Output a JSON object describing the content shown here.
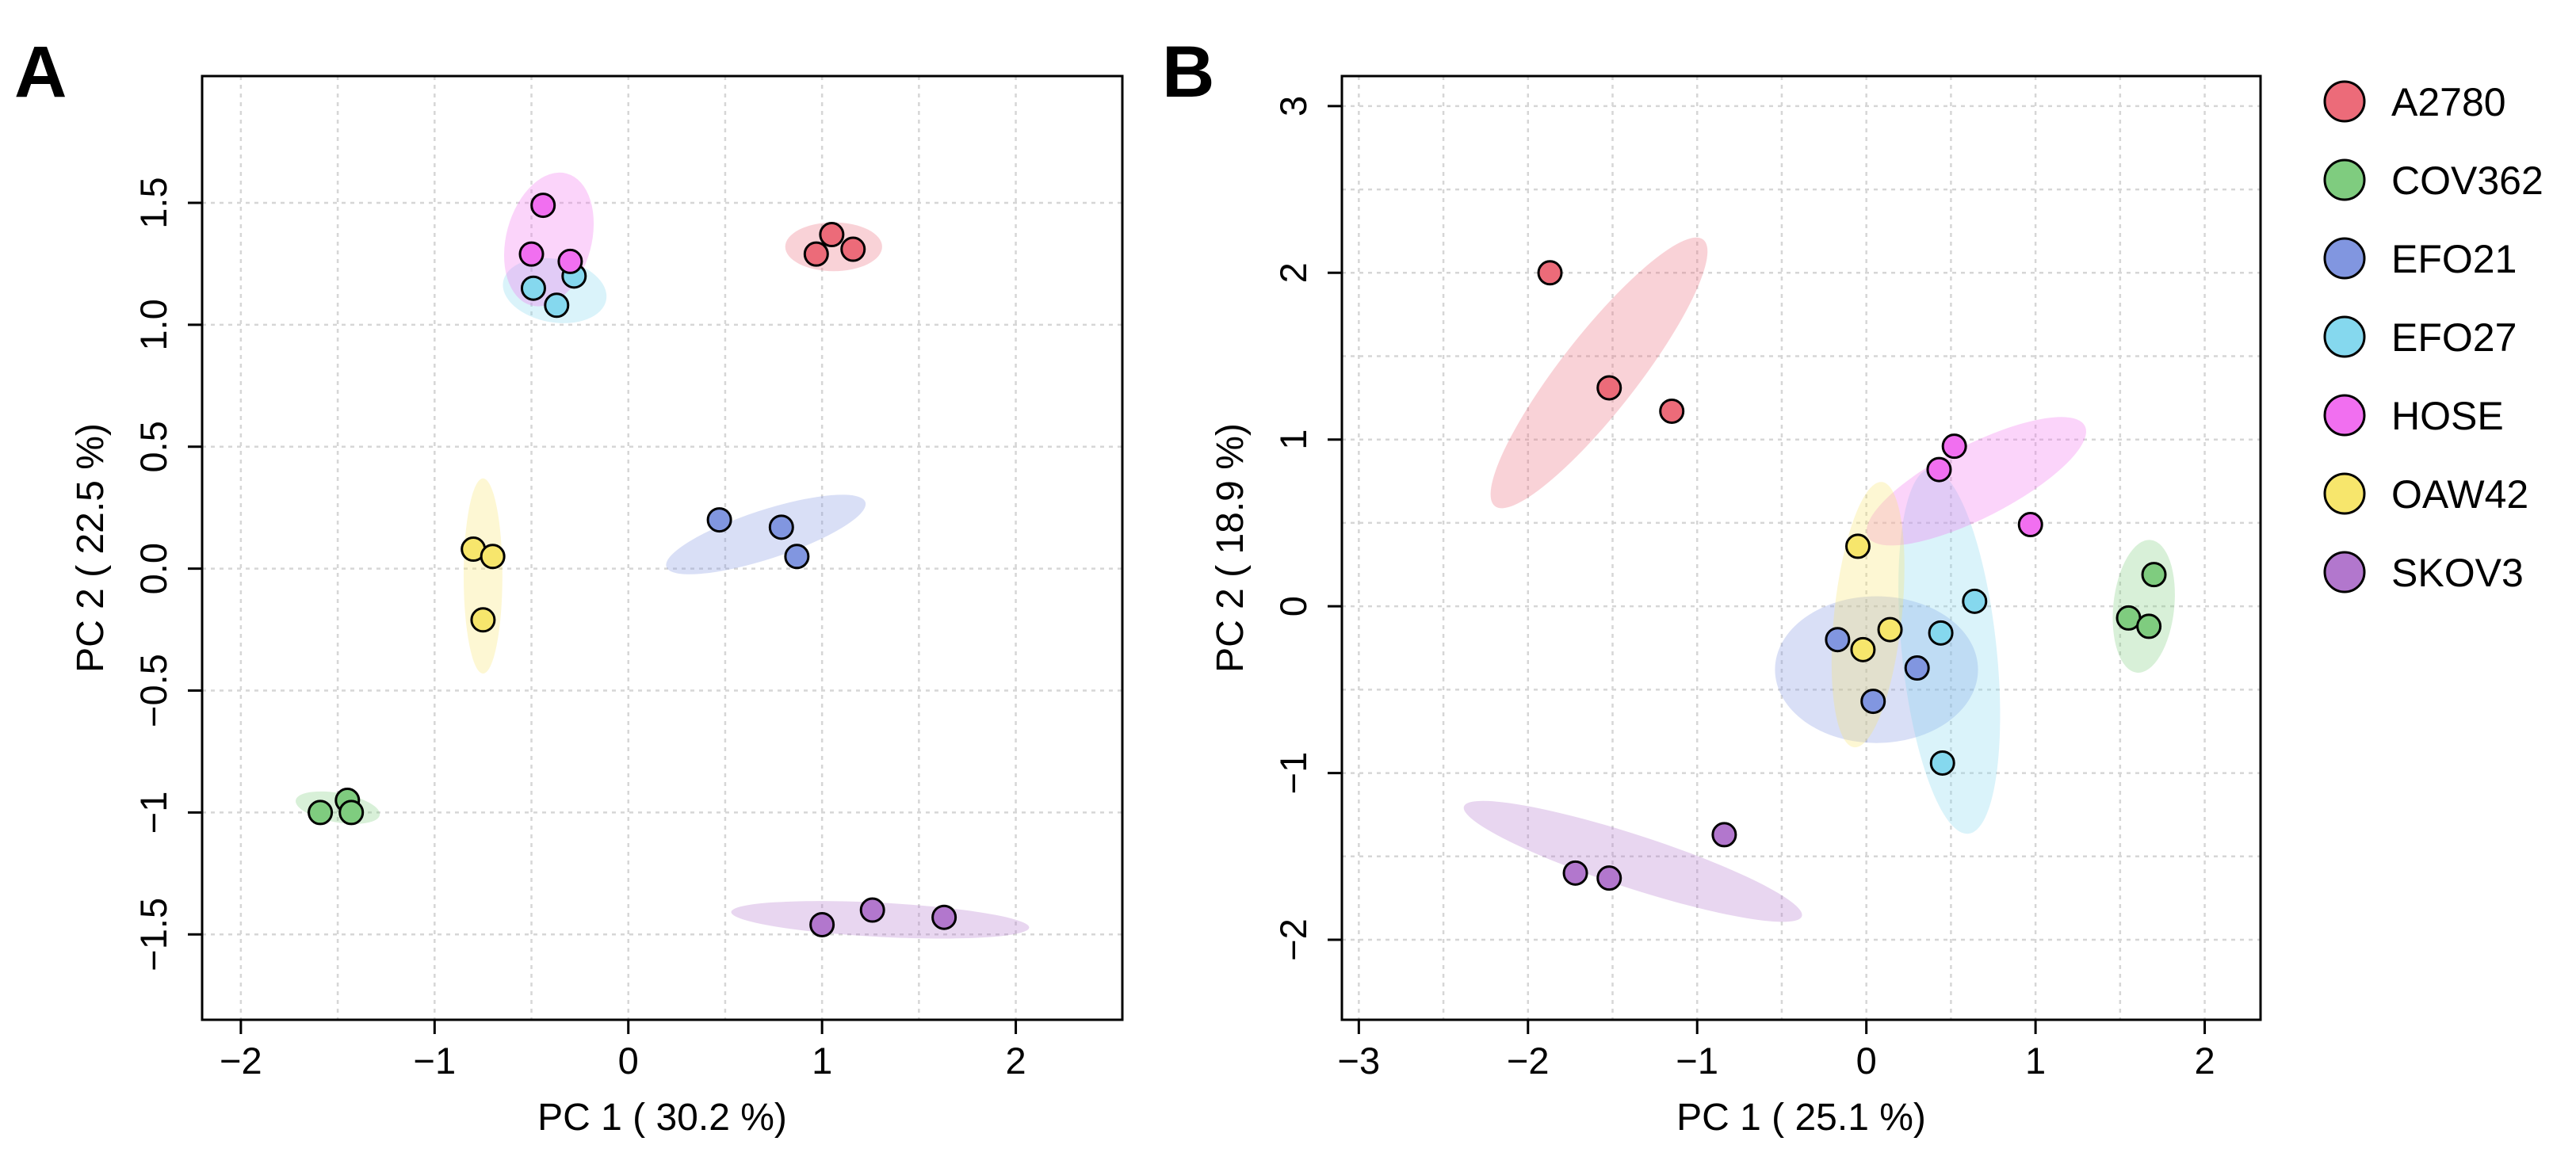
{
  "groups": [
    {
      "name": "A2780",
      "color": "#ec6b79"
    },
    {
      "name": "COV362",
      "color": "#7fcc7f"
    },
    {
      "name": "EFO21",
      "color": "#8196e0"
    },
    {
      "name": "EFO27",
      "color": "#85d8ee"
    },
    {
      "name": "HOSE",
      "color": "#f16ff0"
    },
    {
      "name": "OAW42",
      "color": "#f7e66c"
    },
    {
      "name": "SKOV3",
      "color": "#b277cd"
    }
  ],
  "chart_data": [
    {
      "type": "scatter",
      "panel": "A",
      "xlabel": "PC 1 ( 30.2 %)",
      "ylabel": "PC 2 ( 22.5 %)",
      "xlim": [
        -2.2,
        2.55
      ],
      "ylim": [
        -1.85,
        2.02
      ],
      "xticks": [
        -2,
        -1,
        0,
        1,
        2
      ],
      "xtick_labels": [
        "−2",
        "−1",
        "0",
        "1",
        "2"
      ],
      "yticks": [
        -1.5,
        -1,
        -0.5,
        0,
        0.5,
        1,
        1.5
      ],
      "ytick_labels": [
        "−1.5",
        "−1",
        "−0.5",
        "0.0",
        "0.5",
        "1.0",
        "1.5"
      ],
      "xgrid": [
        -2,
        -1.5,
        -1,
        -0.5,
        0,
        0.5,
        1,
        1.5,
        2
      ],
      "ygrid": [
        -1.5,
        -1,
        -0.5,
        0,
        0.5,
        1,
        1.5
      ],
      "grid": true,
      "series": [
        {
          "name": "A2780",
          "points": [
            [
              0.97,
              1.29
            ],
            [
              1.05,
              1.37
            ],
            [
              1.16,
              1.31
            ]
          ],
          "ellipse": {
            "cx": 1.06,
            "cy": 1.32,
            "rx": 0.25,
            "ry": 0.1,
            "angle": 0
          }
        },
        {
          "name": "COV362",
          "points": [
            [
              -1.59,
              -1.0
            ],
            [
              -1.45,
              -0.95
            ],
            [
              -1.43,
              -1.0
            ]
          ],
          "ellipse": {
            "cx": -1.5,
            "cy": -0.98,
            "rx": 0.22,
            "ry": 0.06,
            "angle": 10
          }
        },
        {
          "name": "EFO21",
          "points": [
            [
              0.47,
              0.2
            ],
            [
              0.79,
              0.17
            ],
            [
              0.87,
              0.05
            ]
          ],
          "ellipse": {
            "cx": 0.71,
            "cy": 0.14,
            "rx": 0.54,
            "ry": 0.1,
            "angle": -18
          }
        },
        {
          "name": "EFO27",
          "points": [
            [
              -0.49,
              1.15
            ],
            [
              -0.37,
              1.08
            ],
            [
              -0.28,
              1.2
            ]
          ],
          "ellipse": {
            "cx": -0.38,
            "cy": 1.14,
            "rx": 0.27,
            "ry": 0.13,
            "angle": 10
          }
        },
        {
          "name": "HOSE",
          "points": [
            [
              -0.44,
              1.49
            ],
            [
              -0.5,
              1.29
            ],
            [
              -0.3,
              1.26
            ]
          ],
          "ellipse": {
            "cx": -0.41,
            "cy": 1.35,
            "rx": 0.22,
            "ry": 0.28,
            "angle": 15
          }
        },
        {
          "name": "OAW42",
          "points": [
            [
              -0.8,
              0.08
            ],
            [
              -0.7,
              0.05
            ],
            [
              -0.75,
              -0.21
            ]
          ],
          "ellipse": {
            "cx": -0.75,
            "cy": -0.03,
            "rx": 0.1,
            "ry": 0.4,
            "angle": 0
          }
        },
        {
          "name": "SKOV3",
          "points": [
            [
              1.0,
              -1.46
            ],
            [
              1.26,
              -1.4
            ],
            [
              1.63,
              -1.43
            ]
          ],
          "ellipse": {
            "cx": 1.3,
            "cy": -1.44,
            "rx": 0.77,
            "ry": 0.07,
            "angle": 3
          }
        }
      ]
    },
    {
      "type": "scatter",
      "panel": "B",
      "xlabel": "PC 1 ( 25.1 %)",
      "ylabel": "PC 2 ( 18.9 %)",
      "xlim": [
        -3.1,
        2.33
      ],
      "ylim": [
        -2.48,
        3.18
      ],
      "xticks": [
        -3,
        -2,
        -1,
        0,
        1,
        2
      ],
      "xtick_labels": [
        "−3",
        "−2",
        "−1",
        "0",
        "1",
        "2"
      ],
      "yticks": [
        -2,
        -1,
        0,
        1,
        2,
        3
      ],
      "ytick_labels": [
        "−2",
        "−1",
        "0",
        "1",
        "2",
        "3"
      ],
      "xgrid": [
        -3,
        -2.5,
        -2,
        -1.5,
        -1,
        -0.5,
        0,
        0.5,
        1,
        1.5,
        2
      ],
      "ygrid": [
        -2,
        -1.5,
        -1,
        -0.5,
        0,
        0.5,
        1,
        1.5,
        2,
        2.5,
        3
      ],
      "grid": true,
      "series": [
        {
          "name": "A2780",
          "points": [
            [
              -1.87,
              2.0
            ],
            [
              -1.52,
              1.31
            ],
            [
              -1.15,
              1.17
            ]
          ],
          "ellipse": {
            "cx": -1.58,
            "cy": 1.4,
            "rx": 1.0,
            "ry": 0.23,
            "angle": -52
          }
        },
        {
          "name": "COV362",
          "points": [
            [
              1.55,
              -0.07
            ],
            [
              1.67,
              -0.12
            ],
            [
              1.7,
              0.19
            ]
          ],
          "ellipse": {
            "cx": 1.64,
            "cy": 0.0,
            "rx": 0.18,
            "ry": 0.4,
            "angle": 6
          }
        },
        {
          "name": "EFO21",
          "points": [
            [
              -0.17,
              -0.2
            ],
            [
              0.04,
              -0.57
            ],
            [
              0.3,
              -0.37
            ]
          ],
          "ellipse": {
            "cx": 0.06,
            "cy": -0.38,
            "rx": 0.6,
            "ry": 0.44,
            "angle": 0
          }
        },
        {
          "name": "EFO27",
          "points": [
            [
              0.44,
              -0.16
            ],
            [
              0.64,
              0.03
            ],
            [
              0.45,
              -0.94
            ]
          ],
          "ellipse": {
            "cx": 0.49,
            "cy": -0.27,
            "rx": 0.28,
            "ry": 1.1,
            "angle": -6
          }
        },
        {
          "name": "HOSE",
          "points": [
            [
              0.52,
              0.96
            ],
            [
              0.43,
              0.82
            ],
            [
              0.97,
              0.49
            ]
          ],
          "ellipse": {
            "cx": 0.65,
            "cy": 0.75,
            "rx": 0.72,
            "ry": 0.22,
            "angle": -27
          }
        },
        {
          "name": "OAW42",
          "points": [
            [
              -0.05,
              0.36
            ],
            [
              0.14,
              -0.14
            ],
            [
              -0.02,
              -0.26
            ]
          ],
          "ellipse": {
            "cx": 0.01,
            "cy": -0.05,
            "rx": 0.2,
            "ry": 0.8,
            "angle": 6
          }
        },
        {
          "name": "SKOV3",
          "points": [
            [
              -1.72,
              -1.6
            ],
            [
              -1.52,
              -1.63
            ],
            [
              -0.84,
              -1.37
            ]
          ],
          "ellipse": {
            "cx": -1.38,
            "cy": -1.53,
            "rx": 1.05,
            "ry": 0.16,
            "angle": 18
          }
        }
      ]
    }
  ]
}
